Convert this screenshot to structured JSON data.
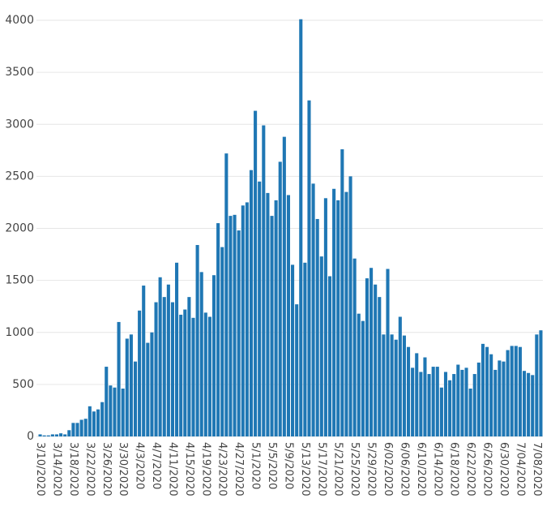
{
  "chart_data": {
    "type": "bar",
    "categories": [
      "3/10/2020",
      null,
      null,
      null,
      "3/14/2020",
      null,
      null,
      null,
      "3/18/2020",
      null,
      null,
      null,
      "3/22/2020",
      null,
      null,
      null,
      "3/26/2020",
      null,
      null,
      null,
      "3/30/2020",
      null,
      null,
      null,
      "4/3/2020",
      null,
      null,
      null,
      "4/7/2020",
      null,
      null,
      null,
      "4/11/2020",
      null,
      null,
      null,
      "4/15/2020",
      null,
      null,
      null,
      "4/19/2020",
      null,
      null,
      null,
      "4/23/2020",
      null,
      null,
      null,
      "4/27/2020",
      null,
      null,
      null,
      "5/1/2020",
      null,
      null,
      null,
      "5/5/2020",
      null,
      null,
      null,
      "5/9/2020",
      null,
      null,
      null,
      "5/13/2020",
      null,
      null,
      null,
      "5/17/2020",
      null,
      null,
      null,
      "5/21/2020",
      null,
      null,
      null,
      "5/25/2020",
      null,
      null,
      null,
      "5/29/2020",
      null,
      null,
      null,
      "6/02/2020",
      null,
      null,
      null,
      "6/06/2020",
      null,
      null,
      null,
      "6/10/2020",
      null,
      null,
      null,
      "6/14/2020",
      null,
      null,
      null,
      "6/18/2020",
      null,
      null,
      null,
      "6/22/2020",
      null,
      null,
      null,
      "6/26/2020",
      null,
      null,
      null,
      "6/30/2020",
      null,
      null,
      null,
      "7/04/2020",
      null,
      null,
      null,
      "7/08/2020",
      null
    ],
    "values": [
      20,
      10,
      10,
      20,
      20,
      30,
      20,
      60,
      130,
      130,
      160,
      170,
      290,
      240,
      260,
      330,
      670,
      490,
      470,
      1100,
      460,
      940,
      980,
      720,
      1210,
      1450,
      900,
      1000,
      1290,
      1530,
      1340,
      1460,
      1290,
      1670,
      1170,
      1220,
      1340,
      1140,
      1840,
      1580,
      1190,
      1150,
      1550,
      2050,
      1820,
      2720,
      2120,
      2130,
      1980,
      2220,
      2250,
      2560,
      3130,
      2450,
      2990,
      2340,
      2120,
      2270,
      2640,
      2880,
      2320,
      1650,
      1270,
      4010,
      1670,
      3230,
      2430,
      2090,
      1730,
      2290,
      1540,
      2380,
      2270,
      2760,
      2350,
      2500,
      1710,
      1180,
      1110,
      1520,
      1620,
      1460,
      1340,
      980,
      1610,
      980,
      930,
      1150,
      970,
      860,
      660,
      800,
      620,
      760,
      600,
      670,
      670,
      470,
      620,
      540,
      600,
      690,
      640,
      660,
      460,
      600,
      710,
      890,
      860,
      790,
      640,
      730,
      720,
      830,
      870,
      870,
      860,
      630,
      610,
      590,
      980,
      1020
    ],
    "color": "#1f77b4",
    "ylim": [
      0,
      4000
    ],
    "yticks": [
      0,
      500,
      1000,
      1500,
      2000,
      2500,
      3000,
      3500,
      4000
    ],
    "grid": true
  }
}
